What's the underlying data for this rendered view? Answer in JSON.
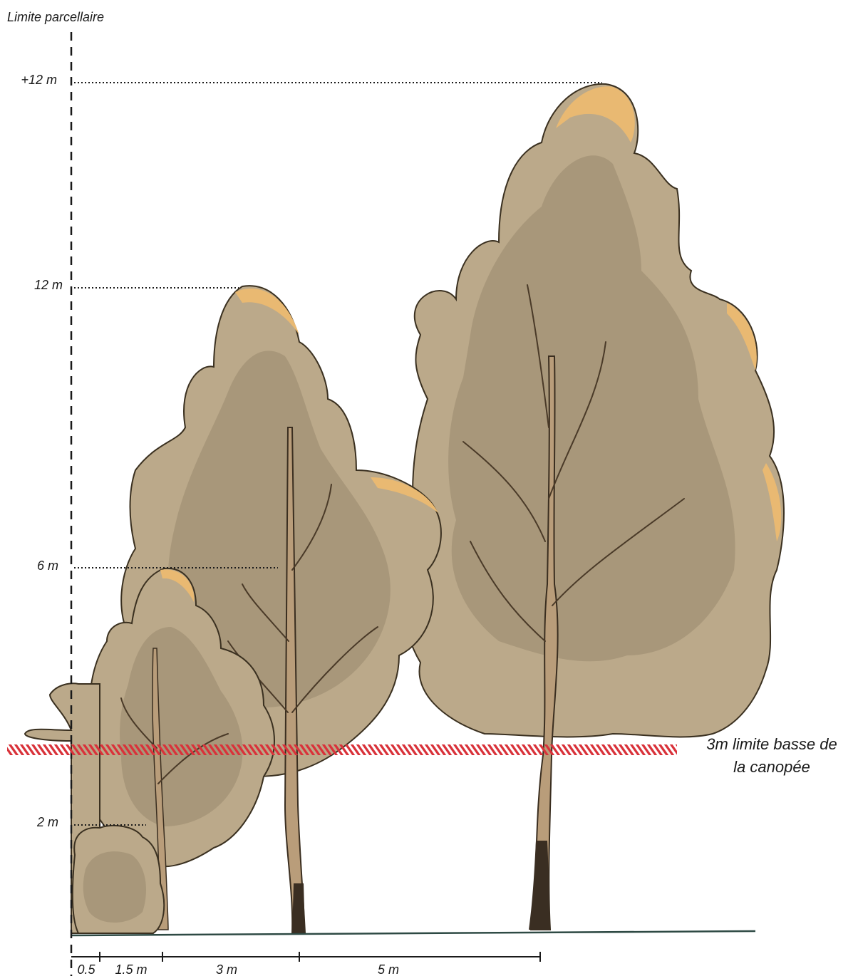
{
  "title": "Limite parcellaire",
  "height_labels": [
    "+12 m",
    "12 m",
    "6 m",
    "2 m"
  ],
  "canopy_label": [
    "3m limite basse de",
    "la canopée"
  ],
  "distance_labels": [
    "0.5",
    "1.5 m",
    "3 m",
    "5 m"
  ]
}
